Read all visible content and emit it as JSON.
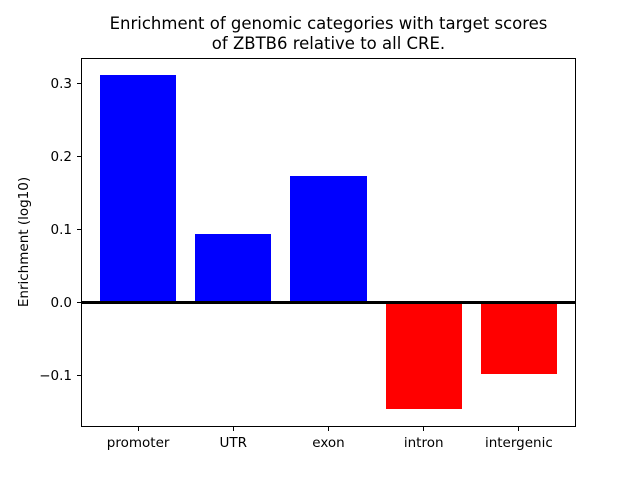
{
  "figure": {
    "background": "#ffffff"
  },
  "chart_data": {
    "type": "bar",
    "title": "Enrichment of genomic categories with target scores\nof ZBTB6 relative to all CRE.",
    "xlabel": "",
    "ylabel": "Enrichment (log10)",
    "categories": [
      "promoter",
      "UTR",
      "exon",
      "intron",
      "intergenic"
    ],
    "values": [
      0.312,
      0.094,
      0.173,
      -0.146,
      -0.098
    ],
    "positive_color": "#0000ff",
    "negative_color": "#ff0000",
    "axis_color": "#000000",
    "ylim": [
      -0.17,
      0.335
    ],
    "yticks": [
      0.3,
      0.2,
      0.1,
      0.0,
      -0.1
    ],
    "ytick_labels": [
      "0.3",
      "0.2",
      "0.1",
      "0.0",
      "−0.1"
    ],
    "zero_line": true,
    "grid": false,
    "legend": null
  }
}
